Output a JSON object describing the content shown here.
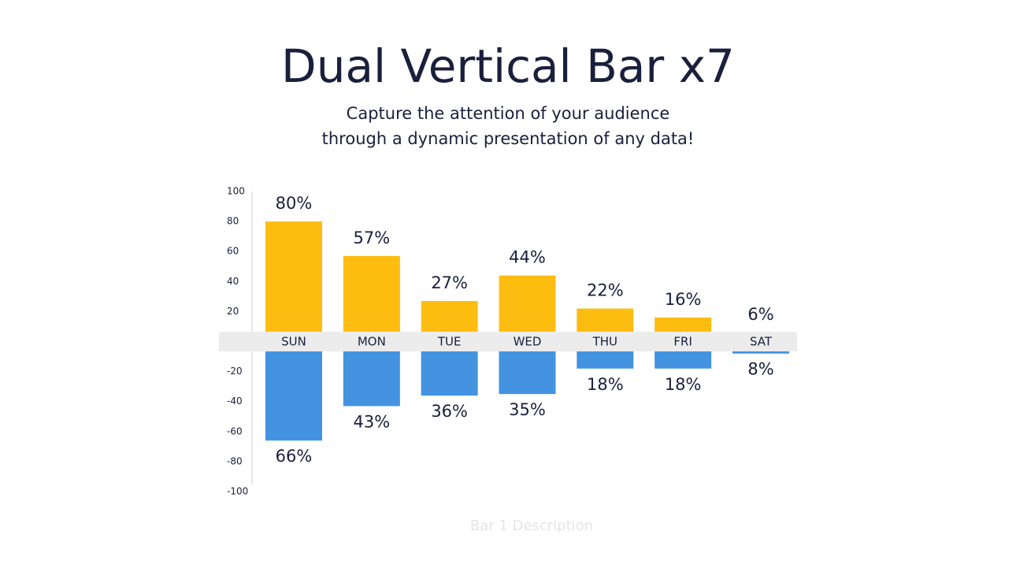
{
  "chart_data": {
    "type": "bar",
    "title": "Dual Vertical Bar x7",
    "subtitle": [
      "Capture the attention of your audience",
      "through a dynamic presentation of any data!"
    ],
    "caption": "Bar 1 Description",
    "categories": [
      "SUN",
      "MON",
      "TUE",
      "WED",
      "THU",
      "FRI",
      "SAT"
    ],
    "series": [
      {
        "color": "#fdbd10",
        "values": [
          80,
          57,
          27,
          44,
          22,
          16,
          6
        ],
        "value_labels": [
          "80%",
          "57%",
          "27%",
          "44%",
          "22%",
          "16%",
          "6%"
        ]
      },
      {
        "color": "#4393e0",
        "values": [
          -66,
          -43,
          -36,
          -35,
          -18,
          -18,
          -8
        ],
        "value_labels": [
          "66%",
          "43%",
          "36%",
          "35%",
          "18%",
          "18%",
          "8%"
        ]
      }
    ],
    "ylim": [
      -100,
      100
    ],
    "yticks": [
      100,
      80,
      60,
      40,
      20,
      -20,
      -40,
      -60,
      -80,
      -100
    ]
  }
}
